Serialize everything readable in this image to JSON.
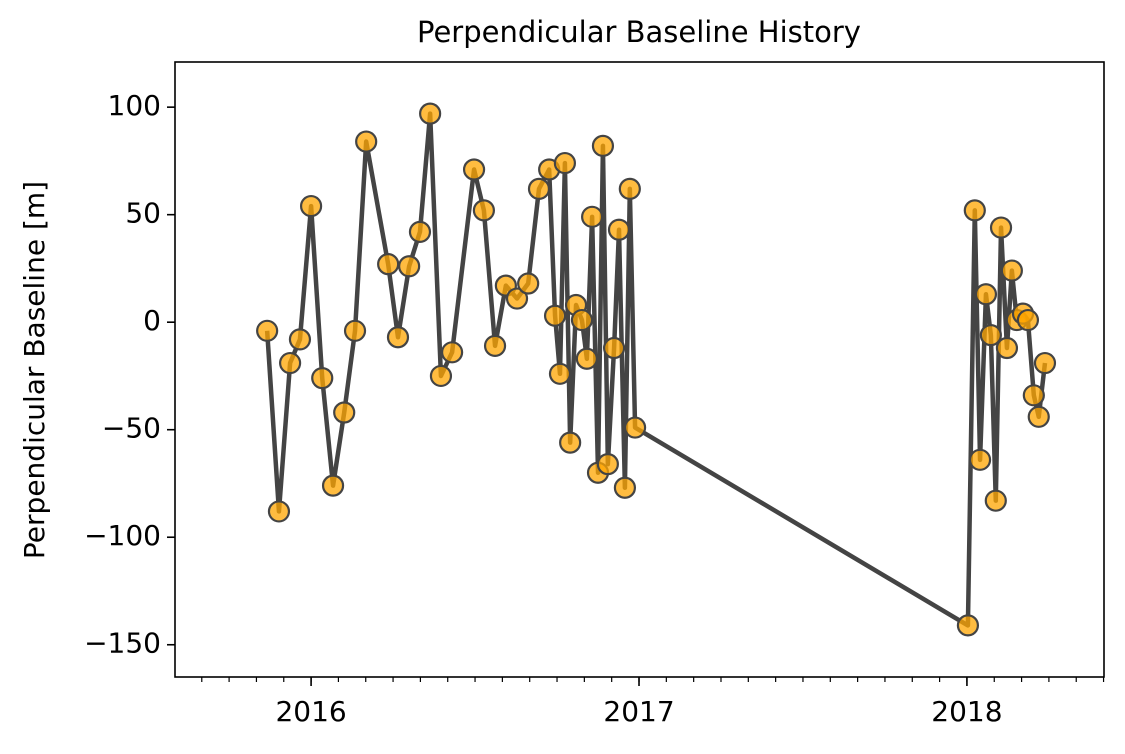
{
  "chart_data": {
    "type": "line",
    "title": "Perpendicular Baseline History",
    "ylabel": "Perpendicular Baseline [m]",
    "x": [
      2015.866,
      2015.902,
      2015.936,
      2015.966,
      2016.0,
      2016.034,
      2016.067,
      2016.101,
      2016.134,
      2016.168,
      2016.235,
      2016.265,
      2016.299,
      2016.332,
      2016.363,
      2016.396,
      2016.43,
      2016.497,
      2016.527,
      2016.561,
      2016.594,
      2016.628,
      2016.662,
      2016.695,
      2016.726,
      2016.744,
      2016.759,
      2016.774,
      2016.79,
      2016.808,
      2016.826,
      2016.841,
      2016.857,
      2016.875,
      2016.89,
      2016.905,
      2016.924,
      2016.939,
      2016.957,
      2016.972,
      2016.988,
      2018.003,
      2018.024,
      2018.04,
      2018.058,
      2018.073,
      2018.088,
      2018.104,
      2018.122,
      2018.137,
      2018.152,
      2018.171,
      2018.186,
      2018.204,
      2018.219,
      2018.238
    ],
    "values": [
      -4,
      -88,
      -19,
      -8,
      54,
      -26,
      -76,
      -42,
      -4,
      84,
      27,
      -7,
      26,
      42,
      97,
      -25,
      -14,
      71,
      52,
      -11,
      17,
      11,
      18,
      62,
      71,
      3,
      -24,
      74,
      -56,
      8,
      1,
      -17,
      49,
      -70,
      82,
      -66,
      -12,
      43,
      -77,
      62,
      -49,
      -141,
      52,
      -64,
      13,
      -6,
      -83,
      44,
      -12,
      24,
      1,
      4,
      1,
      -34,
      -44,
      -19
    ],
    "color": "#444444",
    "marker_color": "#ffa500",
    "xlim": [
      2015.585,
      2018.418
    ],
    "xticks": [
      2016,
      2017,
      2018
    ],
    "ylim": [
      -165,
      121
    ],
    "yticks": [
      {
        "value": -150,
        "label": "−150"
      },
      {
        "value": -100,
        "label": "−100"
      },
      {
        "value": -50,
        "label": "−50"
      },
      0,
      50,
      100
    ]
  }
}
